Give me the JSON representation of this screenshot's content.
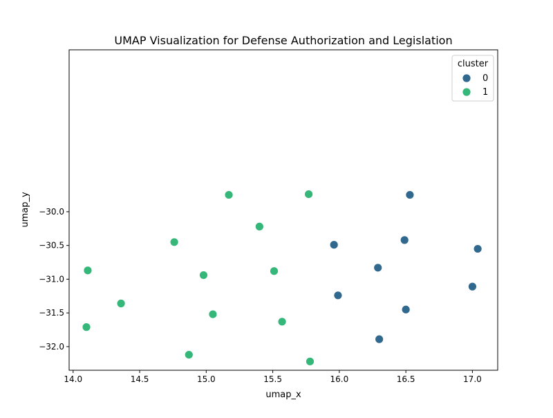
{
  "chart_data": {
    "type": "scatter",
    "title": "UMAP Visualization for Defense Authorization and Legislation",
    "xlabel": "umap_x",
    "ylabel": "umap_y",
    "xlim": [
      13.97,
      17.19
    ],
    "ylim": [
      -32.35,
      -27.6
    ],
    "x_ticks": [
      14.0,
      14.5,
      15.0,
      15.5,
      16.0,
      16.5,
      17.0
    ],
    "x_tick_labels": [
      "14.0",
      "14.5",
      "15.0",
      "15.5",
      "16.0",
      "16.5",
      "17.0"
    ],
    "y_ticks": [
      -30.0,
      -30.5,
      -31.0,
      -31.5,
      -32.0
    ],
    "y_tick_labels": [
      "−30.0",
      "−30.5",
      "−31.0",
      "−31.5",
      "−32.0"
    ],
    "grid": false,
    "legend": {
      "title": "cluster",
      "position": "top-right"
    },
    "series": [
      {
        "name": "0",
        "color": "#30688e",
        "points": [
          [
            16.53,
            -29.75
          ],
          [
            16.49,
            -30.42
          ],
          [
            15.96,
            -30.49
          ],
          [
            17.04,
            -30.55
          ],
          [
            16.29,
            -30.83
          ],
          [
            17.0,
            -31.11
          ],
          [
            15.99,
            -31.24
          ],
          [
            16.5,
            -31.45
          ],
          [
            16.3,
            -31.89
          ]
        ]
      },
      {
        "name": "1",
        "color": "#35b779",
        "points": [
          [
            15.17,
            -29.75
          ],
          [
            15.77,
            -29.74
          ],
          [
            15.4,
            -30.22
          ],
          [
            14.76,
            -30.45
          ],
          [
            14.11,
            -30.87
          ],
          [
            14.98,
            -30.94
          ],
          [
            15.51,
            -30.88
          ],
          [
            14.36,
            -31.36
          ],
          [
            15.05,
            -31.52
          ],
          [
            15.57,
            -31.63
          ],
          [
            14.1,
            -31.71
          ],
          [
            14.87,
            -32.12
          ],
          [
            15.78,
            -32.22
          ]
        ]
      }
    ]
  }
}
